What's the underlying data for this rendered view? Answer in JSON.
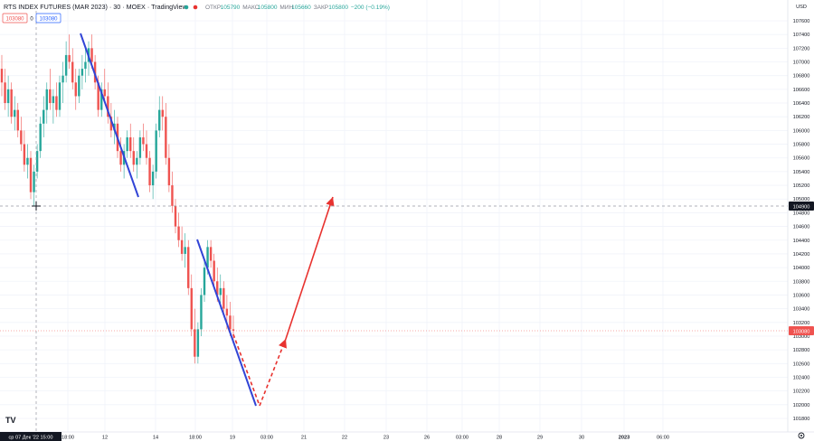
{
  "header": {
    "title": "RTS INDEX FUTURES (MAR 2023) · 30 · MOEX · TradingView",
    "ohlc": [
      {
        "label": "ОТКР",
        "value": "105790"
      },
      {
        "label": "МАКС",
        "value": "105800"
      },
      {
        "label": "МИН",
        "value": "105660"
      },
      {
        "label": "ЗАКР",
        "value": "105800"
      },
      {
        "label": "",
        "value": "−200 (−0.19%)"
      }
    ],
    "bid": "103080",
    "spread": "0",
    "ask": "103080"
  },
  "y_axis": {
    "currency": "USD",
    "ticks": [
      "107600",
      "107400",
      "107200",
      "107000",
      "106800",
      "106600",
      "106400",
      "106200",
      "106000",
      "105800",
      "105600",
      "105400",
      "105200",
      "105000",
      "104800",
      "104600",
      "104400",
      "104200",
      "104000",
      "103800",
      "103600",
      "103400",
      "103200",
      "103000",
      "102800",
      "102600",
      "102400",
      "102200",
      "102000",
      "101800"
    ],
    "crosshair_price": "104900",
    "last_price": "103080"
  },
  "x_axis": {
    "crosshair_time": "ср 07 Дек '22   15:00",
    "ticks": [
      "18:00",
      "12",
      "14",
      "18:00",
      "19",
      "03:00",
      "21",
      "22",
      "23",
      "26",
      "03:00",
      "28",
      "29",
      "30",
      "2023",
      "06:00"
    ]
  },
  "colors": {
    "up": "#26a69a",
    "down": "#ef5350",
    "trend_blue": "#3144d6",
    "trend_red": "#e8322f",
    "last_price": "#ef5350",
    "crosshair_tag": "#131722"
  },
  "chart_data": {
    "type": "candlestick",
    "title": "RTS INDEX FUTURES (MAR 2023) · 30 · MOEX · TradingView",
    "ylabel": "USD",
    "ylim": [
      101700,
      107800
    ],
    "series": [
      {
        "values": [
          [
            106900,
            107100,
            106500,
            106700
          ],
          [
            106700,
            106900,
            106300,
            106400
          ],
          [
            106400,
            106800,
            106200,
            106600
          ],
          [
            106600,
            106700,
            106100,
            106200
          ],
          [
            106200,
            106500,
            106000,
            106300
          ],
          [
            106300,
            106400,
            105900,
            106000
          ],
          [
            106000,
            106200,
            105700,
            105800
          ],
          [
            105800,
            106000,
            105400,
            105500
          ],
          [
            105500,
            105800,
            105300,
            105600
          ],
          [
            105600,
            105700,
            105000,
            105100
          ],
          [
            105100,
            105500,
            104900,
            105400
          ],
          [
            105400,
            105800,
            105300,
            105700
          ],
          [
            105700,
            106200,
            105600,
            106100
          ],
          [
            106100,
            106500,
            105900,
            106300
          ],
          [
            106300,
            106700,
            106100,
            106600
          ],
          [
            106600,
            106900,
            106300,
            106400
          ],
          [
            106400,
            106600,
            106100,
            106500
          ],
          [
            106500,
            106700,
            106200,
            106300
          ],
          [
            106300,
            106800,
            106200,
            106700
          ],
          [
            106700,
            107000,
            106400,
            106800
          ],
          [
            106800,
            107300,
            106700,
            107100
          ],
          [
            107100,
            107400,
            106900,
            107000
          ],
          [
            107000,
            107200,
            106600,
            106700
          ],
          [
            106700,
            106900,
            106300,
            106500
          ],
          [
            106500,
            106900,
            106400,
            106800
          ],
          [
            106800,
            107100,
            106600,
            106900
          ],
          [
            106900,
            107200,
            106700,
            107000
          ],
          [
            107000,
            107300,
            106800,
            107200
          ],
          [
            107200,
            107400,
            106900,
            107000
          ],
          [
            107000,
            107100,
            106600,
            106700
          ],
          [
            106700,
            106800,
            106200,
            106300
          ],
          [
            106300,
            106700,
            106200,
            106600
          ],
          [
            106600,
            106900,
            106400,
            106500
          ],
          [
            106500,
            106700,
            106100,
            106200
          ],
          [
            106200,
            106400,
            105900,
            106000
          ],
          [
            106000,
            106300,
            105800,
            106100
          ],
          [
            106100,
            106200,
            105600,
            105700
          ],
          [
            105700,
            105900,
            105400,
            105500
          ],
          [
            105500,
            105800,
            105300,
            105700
          ],
          [
            105700,
            106000,
            105600,
            105900
          ],
          [
            105900,
            106100,
            105600,
            105700
          ],
          [
            105700,
            105900,
            105400,
            105500
          ],
          [
            105500,
            105700,
            105300,
            105600
          ],
          [
            105600,
            106000,
            105500,
            105900
          ],
          [
            105900,
            106100,
            105700,
            105800
          ],
          [
            105800,
            106000,
            105500,
            105600
          ],
          [
            105600,
            105700,
            105100,
            105200
          ],
          [
            105200,
            105500,
            105000,
            105400
          ],
          [
            105400,
            106100,
            105300,
            106000
          ],
          [
            106000,
            106500,
            105900,
            106300
          ],
          [
            106300,
            106500,
            106000,
            106200
          ],
          [
            106200,
            106400,
            105500,
            105600
          ],
          [
            105600,
            105800,
            105100,
            105200
          ],
          [
            105200,
            105400,
            104800,
            104900
          ],
          [
            104900,
            105000,
            104500,
            104600
          ],
          [
            104600,
            104800,
            104300,
            104400
          ],
          [
            104400,
            104600,
            104100,
            104200
          ],
          [
            104200,
            104500,
            104000,
            104300
          ],
          [
            104300,
            104400,
            103600,
            103700
          ],
          [
            103700,
            103900,
            103000,
            103100
          ],
          [
            103100,
            103400,
            102600,
            102700
          ],
          [
            102700,
            103200,
            102600,
            103100
          ],
          [
            103100,
            103700,
            103000,
            103600
          ],
          [
            103600,
            104100,
            103500,
            104000
          ],
          [
            104000,
            104400,
            103900,
            104300
          ],
          [
            104300,
            104400,
            104000,
            104100
          ],
          [
            104100,
            104200,
            103700,
            103800
          ],
          [
            103800,
            104000,
            103500,
            103600
          ],
          [
            103600,
            103900,
            103400,
            103700
          ],
          [
            103700,
            103800,
            103300,
            103400
          ],
          [
            103400,
            103600,
            103100,
            103300
          ],
          [
            103300,
            103500,
            103000,
            103100
          ],
          [
            103100,
            103300,
            102900,
            103080
          ]
        ]
      }
    ]
  }
}
